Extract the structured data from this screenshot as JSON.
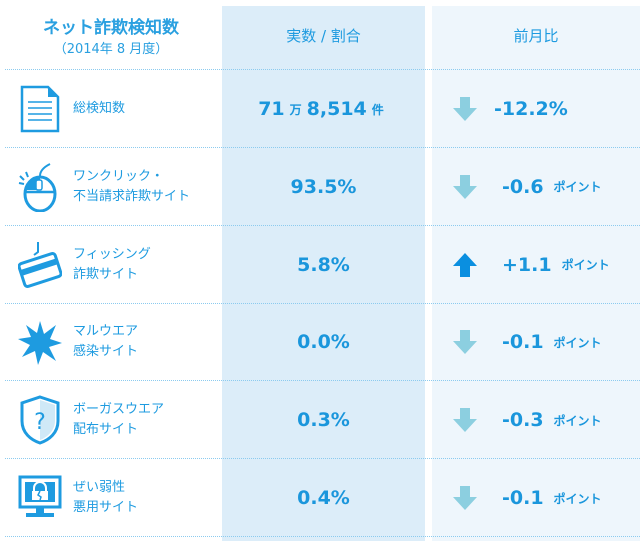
{
  "header": {
    "title": "ネット詐欺検知数",
    "subtitle": "（2014年 8 月度）",
    "col_value": "実数 / 割合",
    "col_change": "前月比"
  },
  "colors": {
    "text": "#1e9be0",
    "down_arrow": "#8ccfe0",
    "up_arrow": "#0a8fe0",
    "col_value_bg": "#dcedf9",
    "col_change_bg": "#eef6fc"
  },
  "rows": [
    {
      "icon": "document-icon",
      "label": "総検知数",
      "value_main": "71",
      "value_unit1": "万",
      "value_rest": "8,514",
      "value_unit2": "件",
      "direction": "down",
      "change": "-12.2%",
      "change_unit": ""
    },
    {
      "icon": "mouse-click-icon",
      "label": "ワンクリック・\n不当請求詐欺サイト",
      "value_main": "93.5%",
      "direction": "down",
      "change": "-0.6",
      "change_unit": "ポイント"
    },
    {
      "icon": "credit-card-hook-icon",
      "label": "フィッシング\n詐欺サイト",
      "value_main": "5.8%",
      "direction": "up",
      "change": "+1.1",
      "change_unit": "ポイント"
    },
    {
      "icon": "burst-icon",
      "label": "マルウエア\n感染サイト",
      "value_main": "0.0%",
      "direction": "down",
      "change": "-0.1",
      "change_unit": "ポイント"
    },
    {
      "icon": "shield-question-icon",
      "label": "ボーガスウエア\n配布サイト",
      "value_main": "0.3%",
      "direction": "down",
      "change": "-0.3",
      "change_unit": "ポイント"
    },
    {
      "icon": "monitor-broken-lock-icon",
      "label": "ぜい弱性\n悪用サイト",
      "value_main": "0.4%",
      "direction": "down",
      "change": "-0.1",
      "change_unit": "ポイント"
    }
  ]
}
